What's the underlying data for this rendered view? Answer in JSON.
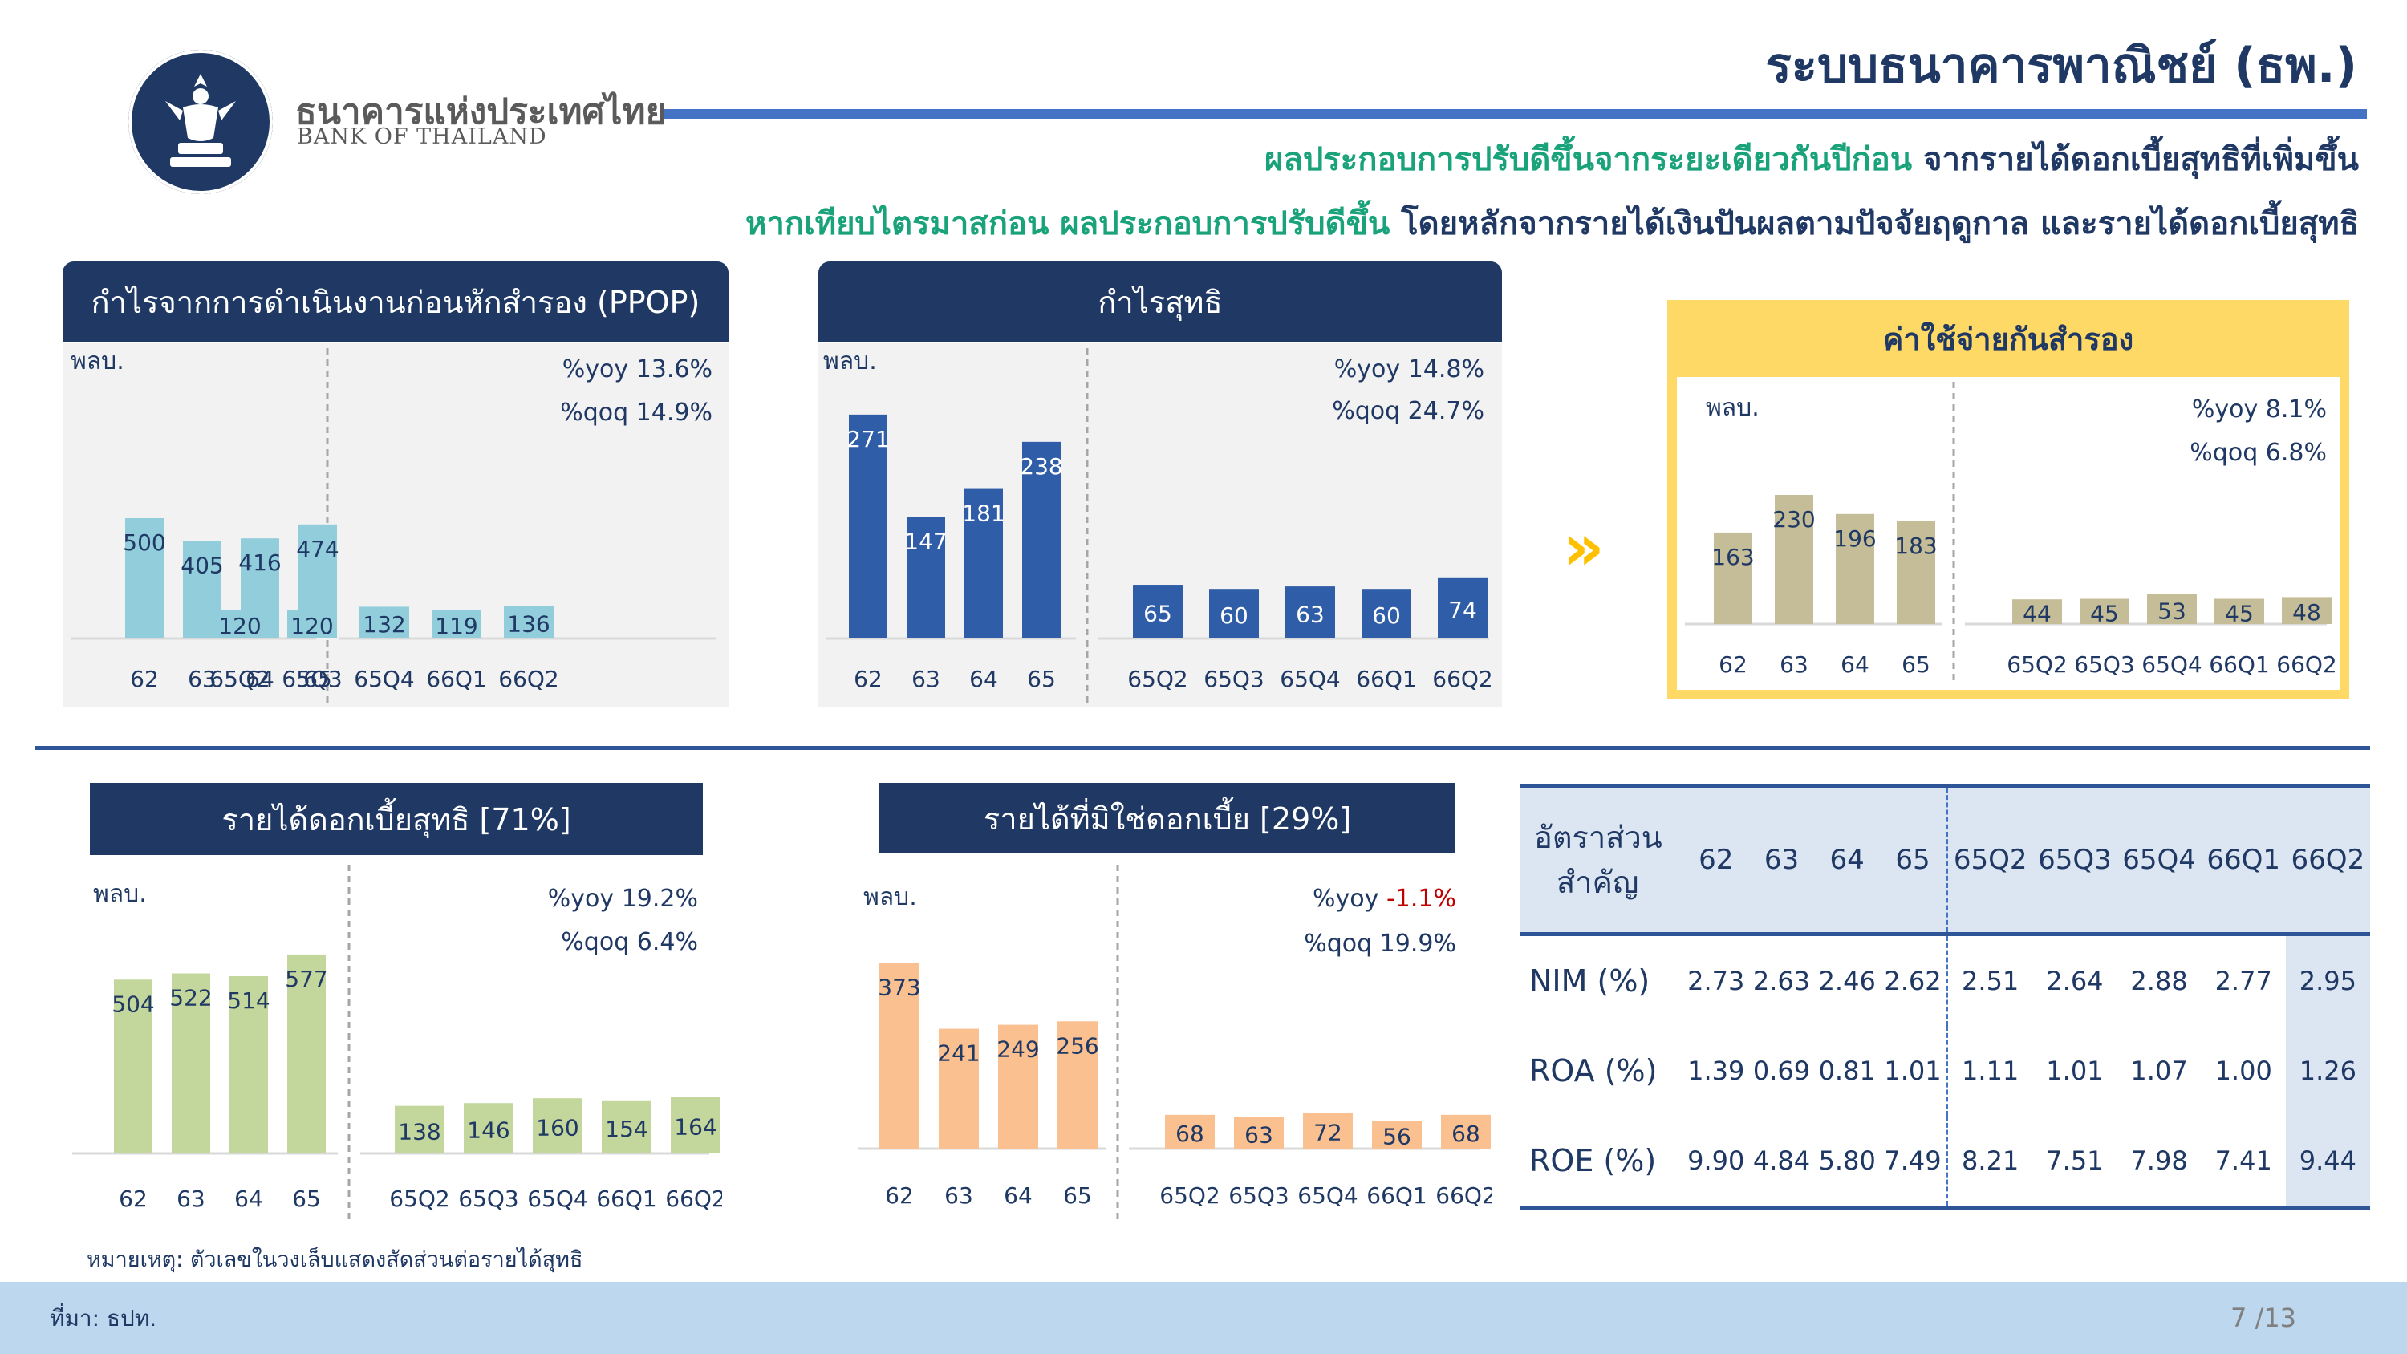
{
  "header": {
    "org_name_th": "ธนาคารแห่งประเทศไทย",
    "org_name_en": "BANK OF THAILAND",
    "page_title": "ระบบธนาคารพาณิชย์ (ธพ.)",
    "subtitle1_green": "ผลประกอบการปรับดีขึ้นจากระยะเดียวกันปีก่อน",
    "subtitle1_navy": " จากรายได้ดอกเบี้ยสุทธิที่เพิ่มขึ้น",
    "subtitle2_green": "หากเทียบไตรมาสก่อน ผลประกอบการปรับดีขึ้น",
    "subtitle2_navy": " โดยหลักจากรายได้เงินปันผลตามปัจจัยฤดูกาล และรายได้ดอกเบี้ยสุทธิ"
  },
  "colors": {
    "navy": "#1f3864",
    "green_text": "#1aa37a",
    "ppop_bar": "#92cddc",
    "profit_bar": "#2f5da8",
    "provision_bar": "#c4bd97",
    "nii_bar": "#c3d69b",
    "nonii_bar": "#fac090",
    "negative": "#c00000",
    "accent_yellow": "#ffd966"
  },
  "panels": {
    "ppop_title": "กำไรจากการดำเนินงานก่อนหักสำรอง (PPOP)",
    "profit_title": "กำไรสุทธิ",
    "provision_title": "ค่าใช้จ่ายกันสำรอง",
    "nii_title": "รายได้ดอกเบี้ยสุทธิ [71%]",
    "nonii_title": "รายได้ที่มิใช่ดอกเบี้ย [29%]"
  },
  "chevron": "»",
  "chart_data": [
    {
      "id": "ppop",
      "type": "bar",
      "unit": "พลบ.",
      "annual": {
        "categories": [
          "62",
          "63",
          "64",
          "65"
        ],
        "values": [
          500,
          405,
          416,
          474
        ]
      },
      "quarterly": {
        "categories": [
          "65Q2",
          "65Q3",
          "65Q4",
          "66Q1",
          "66Q2"
        ],
        "values": [
          120,
          120,
          132,
          119,
          136
        ]
      },
      "yoy_label": "%yoy",
      "yoy": "13.6%",
      "qoq_label": "%qoq",
      "qoq": "14.9%"
    },
    {
      "id": "net_profit",
      "type": "bar",
      "unit": "พลบ.",
      "annual": {
        "categories": [
          "62",
          "63",
          "64",
          "65"
        ],
        "values": [
          271,
          147,
          181,
          238
        ]
      },
      "quarterly": {
        "categories": [
          "65Q2",
          "65Q3",
          "65Q4",
          "66Q1",
          "66Q2"
        ],
        "values": [
          65,
          60,
          63,
          60,
          74
        ]
      },
      "yoy_label": "%yoy",
      "yoy": "14.8%",
      "qoq_label": "%qoq",
      "qoq": "24.7%"
    },
    {
      "id": "provision",
      "type": "bar",
      "unit": "พลบ.",
      "annual": {
        "categories": [
          "62",
          "63",
          "64",
          "65"
        ],
        "values": [
          163,
          230,
          196,
          183
        ]
      },
      "quarterly": {
        "categories": [
          "65Q2",
          "65Q3",
          "65Q4",
          "66Q1",
          "66Q2"
        ],
        "values": [
          44,
          45,
          53,
          45,
          48
        ]
      },
      "yoy_label": "%yoy",
      "yoy": "8.1%",
      "qoq_label": "%qoq",
      "qoq": "6.8%"
    },
    {
      "id": "nii",
      "type": "bar",
      "unit": "พลบ.",
      "annual": {
        "categories": [
          "62",
          "63",
          "64",
          "65"
        ],
        "values": [
          504,
          522,
          514,
          577
        ]
      },
      "quarterly": {
        "categories": [
          "65Q2",
          "65Q3",
          "65Q4",
          "66Q1",
          "66Q2"
        ],
        "values": [
          138,
          146,
          160,
          154,
          164
        ]
      },
      "yoy_label": "%yoy",
      "yoy": "19.2%",
      "qoq_label": "%qoq",
      "qoq": "6.4%"
    },
    {
      "id": "non_nii",
      "type": "bar",
      "unit": "พลบ.",
      "annual": {
        "categories": [
          "62",
          "63",
          "64",
          "65"
        ],
        "values": [
          373,
          241,
          249,
          256
        ]
      },
      "quarterly": {
        "categories": [
          "65Q2",
          "65Q3",
          "65Q4",
          "66Q1",
          "66Q2"
        ],
        "values": [
          68,
          63,
          72,
          56,
          68
        ]
      },
      "yoy_label": "%yoy",
      "yoy": "-1.1%",
      "qoq_label": "%qoq",
      "qoq": "19.9%"
    }
  ],
  "ratio_table": {
    "header_line1": "อัตราส่วน",
    "header_line2": "สำคัญ",
    "columns": [
      "62",
      "63",
      "64",
      "65",
      "65Q2",
      "65Q3",
      "65Q4",
      "66Q1",
      "66Q2"
    ],
    "rows": [
      {
        "label": "NIM (%)",
        "values": [
          "2.73",
          "2.63",
          "2.46",
          "2.62",
          "2.51",
          "2.64",
          "2.88",
          "2.77",
          "2.95"
        ]
      },
      {
        "label": "ROA (%)",
        "values": [
          "1.39",
          "0.69",
          "0.81",
          "1.01",
          "1.11",
          "1.01",
          "1.07",
          "1.00",
          "1.26"
        ]
      },
      {
        "label": "ROE (%)",
        "values": [
          "9.90",
          "4.84",
          "5.80",
          "7.49",
          "8.21",
          "7.51",
          "7.98",
          "7.41",
          "9.44"
        ]
      }
    ]
  },
  "footer": {
    "note": "หมายเหตุ: ตัวเลขในวงเล็บแสดงสัดส่วนต่อรายได้สุทธิ",
    "source": "ที่มา: ธปท.",
    "page": "7 /13"
  }
}
